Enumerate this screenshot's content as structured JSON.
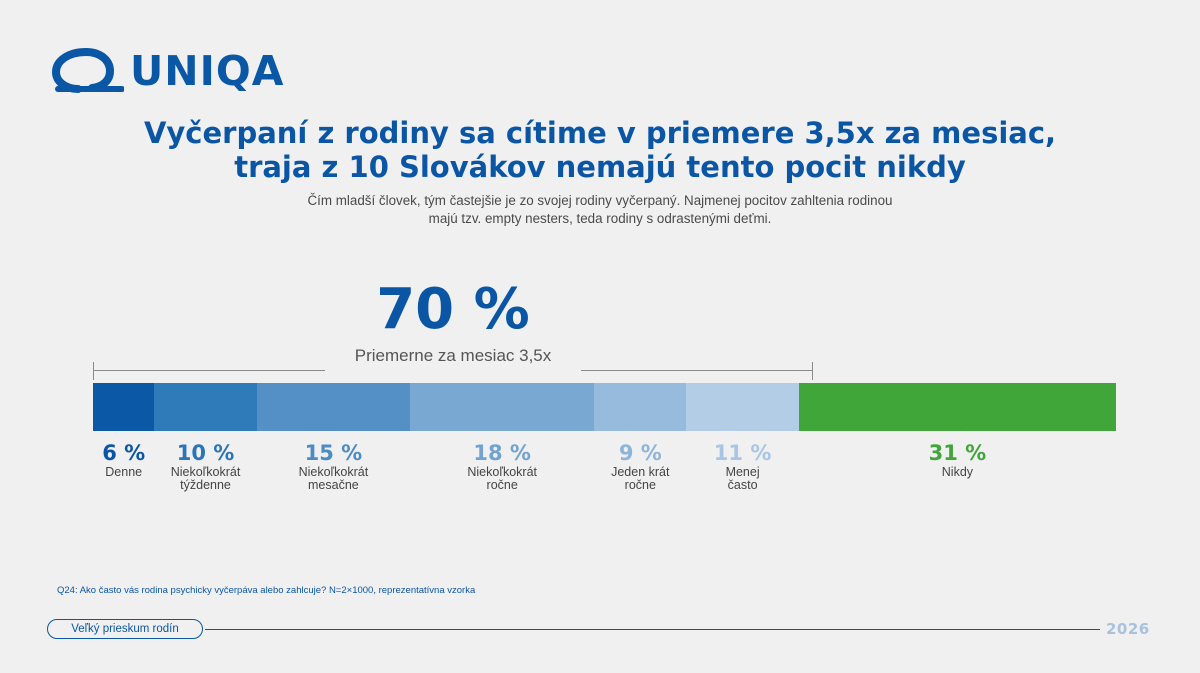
{
  "brand": {
    "name": "UNIQA",
    "color": "#0a57a6"
  },
  "header": {
    "title_lines": [
      "Vyčerpaní z rodiny sa cítime v priemere 3,5x za mesiac,",
      "traja z 10 Slovákov nemajú tento pocit nikdy"
    ],
    "subtitle_lines": [
      "Čím mladší človek, tým častejšie je zo svojej rodiny vyčerpaný. Najmenej pocitov zahltenia rodinou",
      "majú tzv. empty nesters, teda rodiny s odrastenými deťmi."
    ]
  },
  "chart_data": {
    "type": "bar",
    "orientation": "horizontal-stacked",
    "categories": [
      "Denne",
      "Niekoľkokrát týždenne",
      "Niekoľkokrát mesačne",
      "Niekoľkokrát ročne",
      "Jeden krát ročne",
      "Menej často",
      "Nikdy"
    ],
    "category_lines": [
      [
        "Denne"
      ],
      [
        "Niekoľkokrát",
        "týždenne"
      ],
      [
        "Niekoľkokrát",
        "mesačne"
      ],
      [
        "Niekoľkokrát",
        "ročne"
      ],
      [
        "Jeden krát",
        "ročne"
      ],
      [
        "Menej",
        "často"
      ],
      [
        "Nikdy"
      ]
    ],
    "values": [
      6,
      10,
      15,
      18,
      9,
      11,
      31
    ],
    "value_labels": [
      "6 %",
      "10 %",
      "15 %",
      "18 %",
      "9 %",
      "11 %",
      "31 %"
    ],
    "colors": [
      "#0b58a6",
      "#2f7ab9",
      "#548fc5",
      "#79a8d2",
      "#96bbdd",
      "#b3cde6",
      "#41a639"
    ],
    "label_colors": [
      "#0b56a4",
      "#2b74b6",
      "#4d8bc3",
      "#72a2d0",
      "#8db4da",
      "#a9c5e3",
      "#41a639"
    ],
    "bracket": {
      "value_label": "70 %",
      "label": "Priemerne za mesiac 3,5x",
      "spans_first_n": 6
    }
  },
  "footnote": "Q24: Ako často vás rodina psychicky vyčerpáva alebo zahlcuje? N=2×1000, reprezentatívna vzorka",
  "footer": {
    "pill_label": "Veľký prieskum rodín",
    "year": "2026"
  }
}
